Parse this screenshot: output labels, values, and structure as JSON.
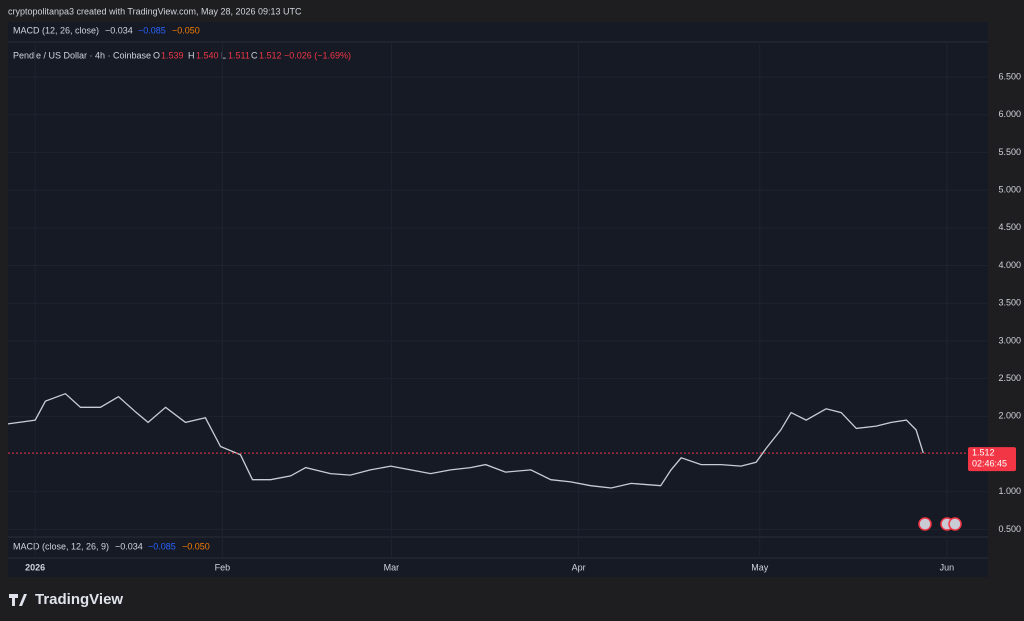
{
  "header": "cryptopolitanpa3 created with TradingView.com, May 28, 2026 09:13 UTC",
  "macd_top": {
    "name": "MACD (12, 26, close)",
    "values": [
      "−0.034",
      "−0.085",
      "−0.050"
    ]
  },
  "legend": {
    "symbol": "Pendle / US Dollar · 4h · Coinbase",
    "o_label": "O",
    "o": "1.539",
    "h_label": "H",
    "h": "1.540",
    "l_label": "L",
    "l": "1.511",
    "c_label": "C",
    "c": "1.512",
    "change": "−0.026 (−1.69%)"
  },
  "macd_bottom": {
    "name": "MACD (close, 12, 26, 9)",
    "values": [
      "−0.034",
      "−0.085",
      "−0.050"
    ]
  },
  "footer": "TradingView",
  "chart_data": {
    "type": "line",
    "color": "#c9ccd4",
    "x": [
      -4.5,
      0,
      1.7,
      5.0,
      7.5,
      10.8,
      13.8,
      16.6,
      18.7,
      21.6,
      24.9,
      28.2,
      30.7,
      34.0,
      36.0,
      39.0,
      42.3,
      44.8,
      48.9,
      52.2,
      55.5,
      58.9,
      62.2,
      65.5,
      68.8,
      72.1,
      74.6,
      77.9,
      82.1,
      85.4,
      88.7,
      92.0,
      95.4,
      98.7,
      103.6,
      105.3,
      107.0,
      110.3,
      113.6,
      116.9,
      119.4,
      121.1,
      123.5,
      125.2,
      127.7,
      131.0,
      133.5,
      136.0,
      139.3,
      141.8,
      144.3,
      145.9,
      147.1
    ],
    "series": [
      {
        "name": "Pendle / US Dollar",
        "color": "#c9ccd4",
        "values": [
          1.9,
          1.95,
          2.2,
          2.3,
          2.12,
          2.12,
          2.26,
          2.06,
          1.92,
          2.12,
          1.92,
          1.98,
          1.6,
          1.49,
          1.16,
          1.16,
          1.21,
          1.32,
          1.24,
          1.22,
          1.29,
          1.34,
          1.29,
          1.24,
          1.29,
          1.32,
          1.36,
          1.26,
          1.29,
          1.16,
          1.13,
          1.08,
          1.05,
          1.11,
          1.08,
          1.29,
          1.45,
          1.36,
          1.36,
          1.34,
          1.39,
          1.58,
          1.82,
          2.05,
          1.95,
          2.1,
          2.05,
          1.84,
          1.87,
          1.92,
          1.95,
          1.82,
          1.512
        ]
      }
    ],
    "xlim": [
      -4.5,
      154
    ],
    "xticks": [
      {
        "value": 0,
        "label": "2026"
      },
      {
        "value": 31,
        "label": "Feb"
      },
      {
        "value": 59,
        "label": "Mar"
      },
      {
        "value": 90,
        "label": "Apr"
      },
      {
        "value": 120,
        "label": "May"
      },
      {
        "value": 151,
        "label": "Jun"
      }
    ],
    "ylim": [
      0.426,
      6.938
    ],
    "yticks": [
      {
        "value": 0.5,
        "label": "0.500"
      },
      {
        "value": 1,
        "label": "1.000"
      },
      {
        "value": 2,
        "label": "2.000"
      },
      {
        "value": 2.5,
        "label": "2.500"
      },
      {
        "value": 3,
        "label": "3.000"
      },
      {
        "value": 3.5,
        "label": "3.500"
      },
      {
        "value": 4,
        "label": "4.000"
      },
      {
        "value": 4.5,
        "label": "4.500"
      },
      {
        "value": 5,
        "label": "5.000"
      },
      {
        "value": 5.5,
        "label": "5.500"
      },
      {
        "value": 6,
        "label": "6.000"
      },
      {
        "value": 6.5,
        "label": "6.500"
      }
    ],
    "last_price": 1.512,
    "countdown": "02:46:45",
    "grid": true
  }
}
